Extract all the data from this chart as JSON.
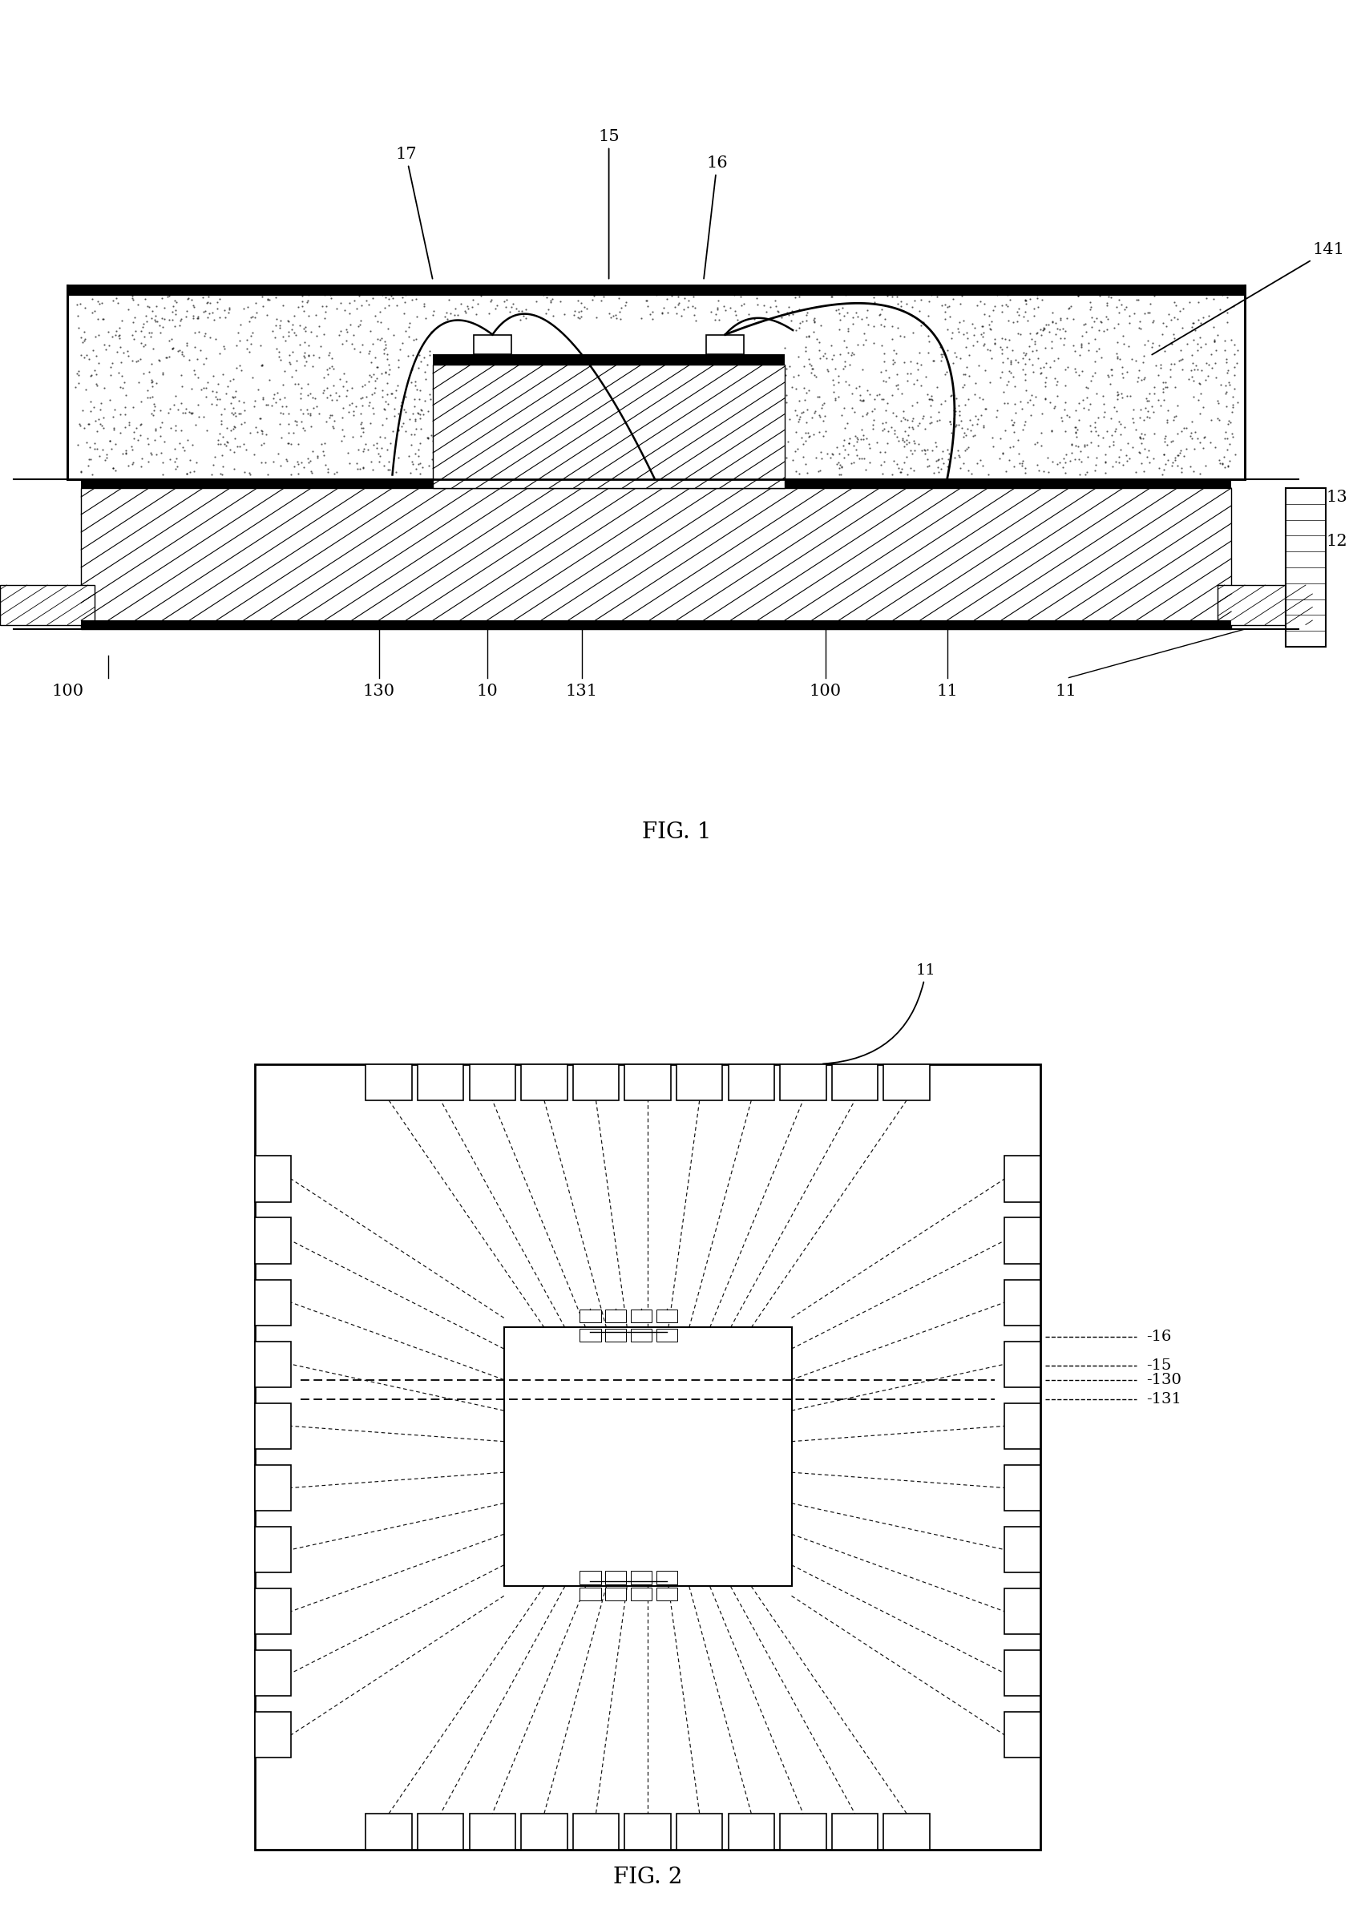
{
  "fig1_title": "FIG. 1",
  "fig2_title": "FIG. 2",
  "bg": "#ffffff",
  "black": "#000000",
  "gray_light": "#d0d0d0",
  "stipple_color": "#444444"
}
